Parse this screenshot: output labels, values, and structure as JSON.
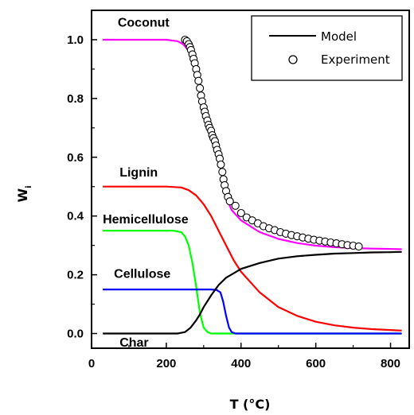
{
  "chart_data": {
    "type": "line",
    "xlabel": "T (°C)",
    "ylabel": "W",
    "ylabel_subscript": "i",
    "xlim": [
      0,
      850
    ],
    "ylim": [
      -0.05,
      1.1
    ],
    "xticks": [
      0,
      200,
      400,
      600,
      800
    ],
    "yticks": [
      0.0,
      0.2,
      0.4,
      0.6,
      0.8,
      1.0
    ],
    "ytick_labels": [
      "0.0",
      "0.2",
      "0.4",
      "0.6",
      "0.8",
      "1.0"
    ],
    "grid": false,
    "legend": {
      "position": "top-right",
      "entries": [
        {
          "label": "Model",
          "symbol": "line",
          "color": "#000000"
        },
        {
          "label": "Experiment",
          "symbol": "open-circle",
          "color": "#000000"
        }
      ]
    },
    "series": [
      {
        "name": "Coconut",
        "kind": "model",
        "color": "#ff00ff",
        "x": [
          30,
          200,
          230,
          245,
          255,
          265,
          275,
          285,
          295,
          305,
          315,
          325,
          335,
          345,
          355,
          365,
          375,
          400,
          450,
          500,
          550,
          600,
          650,
          700,
          750,
          800,
          830
        ],
        "y": [
          1.0,
          1.0,
          0.995,
          0.985,
          0.97,
          0.95,
          0.92,
          0.87,
          0.81,
          0.75,
          0.7,
          0.66,
          0.62,
          0.57,
          0.5,
          0.45,
          0.42,
          0.385,
          0.345,
          0.322,
          0.308,
          0.299,
          0.294,
          0.291,
          0.289,
          0.288,
          0.287
        ]
      },
      {
        "name": "Lignin",
        "kind": "model",
        "color": "#ff0000",
        "x": [
          30,
          200,
          240,
          260,
          280,
          300,
          320,
          340,
          360,
          380,
          400,
          450,
          500,
          550,
          600,
          650,
          700,
          750,
          800,
          830
        ],
        "y": [
          0.5,
          0.5,
          0.497,
          0.488,
          0.47,
          0.44,
          0.4,
          0.35,
          0.3,
          0.25,
          0.21,
          0.14,
          0.09,
          0.06,
          0.04,
          0.028,
          0.02,
          0.015,
          0.012,
          0.01
        ]
      },
      {
        "name": "Hemicellulose",
        "kind": "model",
        "color": "#00ff00",
        "x": [
          30,
          220,
          240,
          250,
          260,
          270,
          280,
          290,
          300,
          310,
          320,
          340,
          830
        ],
        "y": [
          0.35,
          0.35,
          0.345,
          0.33,
          0.3,
          0.24,
          0.16,
          0.07,
          0.02,
          0.005,
          0.0,
          0.0,
          0.0
        ]
      },
      {
        "name": "Cellulose",
        "kind": "model",
        "color": "#0000ff",
        "x": [
          30,
          320,
          335,
          345,
          352,
          360,
          368,
          375,
          385,
          830
        ],
        "y": [
          0.15,
          0.15,
          0.148,
          0.14,
          0.11,
          0.06,
          0.02,
          0.005,
          0.0,
          0.0
        ]
      },
      {
        "name": "Char",
        "kind": "model",
        "color": "#000000",
        "x": [
          30,
          230,
          250,
          265,
          280,
          290,
          300,
          320,
          340,
          360,
          380,
          400,
          450,
          500,
          550,
          600,
          650,
          700,
          750,
          800,
          830
        ],
        "y": [
          0.0,
          0.0,
          0.005,
          0.02,
          0.045,
          0.065,
          0.09,
          0.13,
          0.165,
          0.19,
          0.205,
          0.22,
          0.24,
          0.255,
          0.263,
          0.268,
          0.272,
          0.274,
          0.276,
          0.277,
          0.278
        ]
      },
      {
        "name": "Coconut",
        "kind": "experiment",
        "color": "#000000",
        "x": [
          250,
          255,
          260,
          263,
          266,
          270,
          273,
          276,
          280,
          283,
          286,
          290,
          293,
          296,
          300,
          303,
          306,
          310,
          313,
          316,
          320,
          323,
          326,
          330,
          333,
          336,
          340,
          343,
          346,
          350,
          353,
          356,
          360,
          365,
          370,
          385,
          400,
          415,
          430,
          445,
          460,
          475,
          490,
          505,
          520,
          535,
          550,
          565,
          580,
          595,
          610,
          625,
          640,
          655,
          670,
          685,
          700,
          715
        ],
        "y": [
          1.0,
          0.995,
          0.985,
          0.975,
          0.965,
          0.95,
          0.935,
          0.92,
          0.9,
          0.88,
          0.86,
          0.835,
          0.81,
          0.79,
          0.77,
          0.755,
          0.74,
          0.725,
          0.71,
          0.7,
          0.69,
          0.675,
          0.665,
          0.655,
          0.64,
          0.625,
          0.61,
          0.595,
          0.575,
          0.55,
          0.525,
          0.505,
          0.485,
          0.465,
          0.45,
          0.435,
          0.41,
          0.395,
          0.385,
          0.375,
          0.365,
          0.358,
          0.352,
          0.345,
          0.34,
          0.335,
          0.331,
          0.327,
          0.323,
          0.319,
          0.316,
          0.313,
          0.31,
          0.307,
          0.304,
          0.301,
          0.299,
          0.296
        ]
      }
    ],
    "annotations": [
      {
        "text": "Coconut",
        "x": 70,
        "y": 1.045
      },
      {
        "text": "Lignin",
        "x": 75,
        "y": 0.535
      },
      {
        "text": "Hemicellulose",
        "x": 30,
        "y": 0.375
      },
      {
        "text": "Cellulose",
        "x": 60,
        "y": 0.19
      },
      {
        "text": "Char",
        "x": 75,
        "y": -0.045
      }
    ]
  }
}
